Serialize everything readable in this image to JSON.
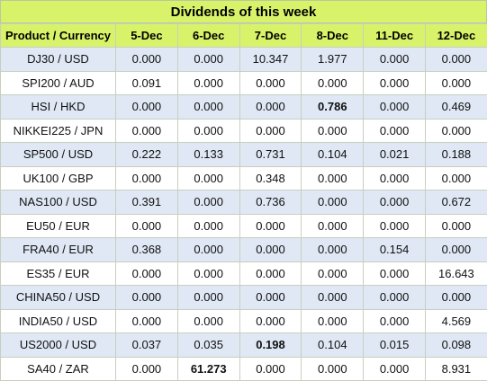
{
  "title": "Dividends of this week",
  "header": {
    "product_label": "Product / Currency",
    "dates": [
      "5-Dec",
      "6-Dec",
      "7-Dec",
      "8-Dec",
      "11-Dec",
      "12-Dec"
    ]
  },
  "rows": [
    {
      "product": "DJ30 / USD",
      "values": [
        "0.000",
        "0.000",
        "10.347",
        "1.977",
        "0.000",
        "0.000"
      ],
      "bold": []
    },
    {
      "product": "SPI200 / AUD",
      "values": [
        "0.091",
        "0.000",
        "0.000",
        "0.000",
        "0.000",
        "0.000"
      ],
      "bold": []
    },
    {
      "product": "HSI / HKD",
      "values": [
        "0.000",
        "0.000",
        "0.000",
        "0.786",
        "0.000",
        "0.469"
      ],
      "bold": [
        3
      ]
    },
    {
      "product": "NIKKEI225 / JPN",
      "values": [
        "0.000",
        "0.000",
        "0.000",
        "0.000",
        "0.000",
        "0.000"
      ],
      "bold": []
    },
    {
      "product": "SP500 / USD",
      "values": [
        "0.222",
        "0.133",
        "0.731",
        "0.104",
        "0.021",
        "0.188"
      ],
      "bold": []
    },
    {
      "product": "UK100 / GBP",
      "values": [
        "0.000",
        "0.000",
        "0.348",
        "0.000",
        "0.000",
        "0.000"
      ],
      "bold": []
    },
    {
      "product": "NAS100 / USD",
      "values": [
        "0.391",
        "0.000",
        "0.736",
        "0.000",
        "0.000",
        "0.672"
      ],
      "bold": []
    },
    {
      "product": "EU50 / EUR",
      "values": [
        "0.000",
        "0.000",
        "0.000",
        "0.000",
        "0.000",
        "0.000"
      ],
      "bold": []
    },
    {
      "product": "FRA40 / EUR",
      "values": [
        "0.368",
        "0.000",
        "0.000",
        "0.000",
        "0.154",
        "0.000"
      ],
      "bold": []
    },
    {
      "product": "ES35 / EUR",
      "values": [
        "0.000",
        "0.000",
        "0.000",
        "0.000",
        "0.000",
        "16.643"
      ],
      "bold": []
    },
    {
      "product": "CHINA50 / USD",
      "values": [
        "0.000",
        "0.000",
        "0.000",
        "0.000",
        "0.000",
        "0.000"
      ],
      "bold": []
    },
    {
      "product": "INDIA50 / USD",
      "values": [
        "0.000",
        "0.000",
        "0.000",
        "0.000",
        "0.000",
        "4.569"
      ],
      "bold": []
    },
    {
      "product": "US2000 / USD",
      "values": [
        "0.037",
        "0.035",
        "0.198",
        "0.104",
        "0.015",
        "0.098"
      ],
      "bold": [
        2
      ]
    },
    {
      "product": "SA40 / ZAR",
      "values": [
        "0.000",
        "61.273",
        "0.000",
        "0.000",
        "0.000",
        "8.931"
      ],
      "bold": [
        1
      ]
    }
  ],
  "colors": {
    "header_bg": "#d8f36a",
    "row_alt_bg": "#dfe8f4",
    "row_bg": "#ffffff"
  }
}
